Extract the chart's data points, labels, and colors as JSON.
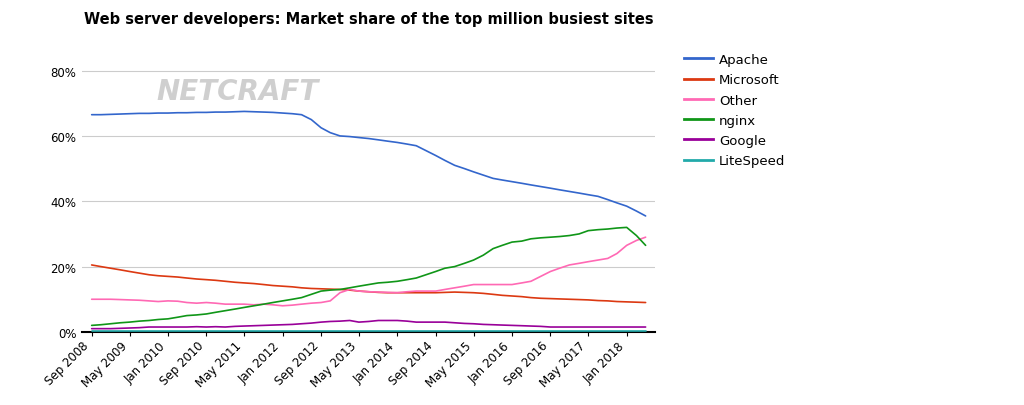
{
  "title": "Web server developers: Market share of the top million busiest sites",
  "series": {
    "Apache": {
      "color": "#3366cc",
      "data_x": [
        2008.67,
        2008.83,
        2009.0,
        2009.17,
        2009.33,
        2009.5,
        2009.67,
        2009.83,
        2010.0,
        2010.17,
        2010.33,
        2010.5,
        2010.67,
        2010.83,
        2011.0,
        2011.17,
        2011.33,
        2011.5,
        2011.67,
        2011.83,
        2012.0,
        2012.17,
        2012.33,
        2012.5,
        2012.67,
        2012.83,
        2013.0,
        2013.17,
        2013.33,
        2013.5,
        2013.67,
        2013.83,
        2014.0,
        2014.17,
        2014.33,
        2014.5,
        2014.67,
        2014.83,
        2015.0,
        2015.17,
        2015.33,
        2015.5,
        2015.67,
        2015.83,
        2016.0,
        2016.17,
        2016.33,
        2016.5,
        2016.67,
        2016.83,
        2017.0,
        2017.17,
        2017.33,
        2017.5,
        2017.67,
        2017.83,
        2018.0,
        2018.17,
        2018.33
      ],
      "data_y": [
        66.5,
        66.5,
        66.6,
        66.7,
        66.8,
        66.9,
        66.9,
        67.0,
        67.0,
        67.1,
        67.1,
        67.2,
        67.2,
        67.3,
        67.3,
        67.4,
        67.5,
        67.4,
        67.3,
        67.2,
        67.0,
        66.8,
        66.5,
        65.0,
        62.5,
        61.0,
        60.0,
        59.8,
        59.5,
        59.2,
        58.8,
        58.4,
        58.0,
        57.5,
        57.0,
        55.5,
        54.0,
        52.5,
        51.0,
        50.0,
        49.0,
        48.0,
        47.0,
        46.5,
        46.0,
        45.5,
        45.0,
        44.5,
        44.0,
        43.5,
        43.0,
        42.5,
        42.0,
        41.5,
        40.5,
        39.5,
        38.5,
        37.0,
        35.5
      ]
    },
    "Microsoft": {
      "color": "#dc3912",
      "data_x": [
        2008.67,
        2008.83,
        2009.0,
        2009.17,
        2009.33,
        2009.5,
        2009.67,
        2009.83,
        2010.0,
        2010.17,
        2010.33,
        2010.5,
        2010.67,
        2010.83,
        2011.0,
        2011.17,
        2011.33,
        2011.5,
        2011.67,
        2011.83,
        2012.0,
        2012.17,
        2012.33,
        2012.5,
        2012.67,
        2012.83,
        2013.0,
        2013.17,
        2013.33,
        2013.5,
        2013.67,
        2013.83,
        2014.0,
        2014.17,
        2014.33,
        2014.5,
        2014.67,
        2014.83,
        2015.0,
        2015.17,
        2015.33,
        2015.5,
        2015.67,
        2015.83,
        2016.0,
        2016.17,
        2016.33,
        2016.5,
        2016.67,
        2016.83,
        2017.0,
        2017.17,
        2017.33,
        2017.5,
        2017.67,
        2017.83,
        2018.0,
        2018.17,
        2018.33
      ],
      "data_y": [
        20.5,
        20.0,
        19.5,
        19.0,
        18.5,
        18.0,
        17.5,
        17.2,
        17.0,
        16.8,
        16.5,
        16.2,
        16.0,
        15.8,
        15.5,
        15.2,
        15.0,
        14.8,
        14.5,
        14.2,
        14.0,
        13.8,
        13.5,
        13.3,
        13.2,
        13.1,
        13.0,
        12.8,
        12.5,
        12.3,
        12.1,
        12.0,
        12.0,
        12.0,
        12.0,
        12.0,
        12.0,
        12.1,
        12.2,
        12.1,
        12.0,
        11.8,
        11.5,
        11.2,
        11.0,
        10.8,
        10.5,
        10.3,
        10.2,
        10.1,
        10.0,
        9.9,
        9.8,
        9.6,
        9.5,
        9.3,
        9.2,
        9.1,
        9.0
      ]
    },
    "Other": {
      "color": "#ff69b4",
      "data_x": [
        2008.67,
        2008.83,
        2009.0,
        2009.17,
        2009.33,
        2009.5,
        2009.67,
        2009.83,
        2010.0,
        2010.17,
        2010.33,
        2010.5,
        2010.67,
        2010.83,
        2011.0,
        2011.17,
        2011.33,
        2011.5,
        2011.67,
        2011.83,
        2012.0,
        2012.17,
        2012.33,
        2012.5,
        2012.67,
        2012.83,
        2013.0,
        2013.17,
        2013.33,
        2013.5,
        2013.67,
        2013.83,
        2014.0,
        2014.17,
        2014.33,
        2014.5,
        2014.67,
        2014.83,
        2015.0,
        2015.17,
        2015.33,
        2015.5,
        2015.67,
        2015.83,
        2016.0,
        2016.17,
        2016.33,
        2016.5,
        2016.67,
        2016.83,
        2017.0,
        2017.17,
        2017.33,
        2017.5,
        2017.67,
        2017.83,
        2018.0,
        2018.17,
        2018.33
      ],
      "data_y": [
        10.0,
        10.0,
        10.0,
        9.9,
        9.8,
        9.7,
        9.5,
        9.3,
        9.5,
        9.4,
        9.0,
        8.8,
        9.0,
        8.8,
        8.5,
        8.5,
        8.5,
        8.3,
        8.5,
        8.3,
        8.0,
        8.2,
        8.5,
        8.8,
        9.0,
        9.5,
        12.0,
        13.0,
        12.5,
        12.3,
        12.2,
        12.1,
        12.0,
        12.3,
        12.5,
        12.5,
        12.5,
        13.0,
        13.5,
        14.0,
        14.5,
        14.5,
        14.5,
        14.5,
        14.5,
        15.0,
        15.5,
        17.0,
        18.5,
        19.5,
        20.5,
        21.0,
        21.5,
        22.0,
        22.5,
        24.0,
        26.5,
        28.0,
        29.0
      ]
    },
    "nginx": {
      "color": "#109618",
      "data_x": [
        2008.67,
        2008.83,
        2009.0,
        2009.17,
        2009.33,
        2009.5,
        2009.67,
        2009.83,
        2010.0,
        2010.17,
        2010.33,
        2010.5,
        2010.67,
        2010.83,
        2011.0,
        2011.17,
        2011.33,
        2011.5,
        2011.67,
        2011.83,
        2012.0,
        2012.17,
        2012.33,
        2012.5,
        2012.67,
        2012.83,
        2013.0,
        2013.17,
        2013.33,
        2013.5,
        2013.67,
        2013.83,
        2014.0,
        2014.17,
        2014.33,
        2014.5,
        2014.67,
        2014.83,
        2015.0,
        2015.17,
        2015.33,
        2015.5,
        2015.67,
        2015.83,
        2016.0,
        2016.17,
        2016.33,
        2016.5,
        2016.67,
        2016.83,
        2017.0,
        2017.17,
        2017.33,
        2017.5,
        2017.67,
        2017.83,
        2018.0,
        2018.17,
        2018.33
      ],
      "data_y": [
        2.0,
        2.2,
        2.5,
        2.8,
        3.0,
        3.3,
        3.5,
        3.8,
        4.0,
        4.5,
        5.0,
        5.2,
        5.5,
        6.0,
        6.5,
        7.0,
        7.5,
        8.0,
        8.5,
        9.0,
        9.5,
        10.0,
        10.5,
        11.5,
        12.5,
        12.8,
        13.0,
        13.5,
        14.0,
        14.5,
        15.0,
        15.2,
        15.5,
        16.0,
        16.5,
        17.5,
        18.5,
        19.5,
        20.0,
        21.0,
        22.0,
        23.5,
        25.5,
        26.5,
        27.5,
        27.8,
        28.5,
        28.8,
        29.0,
        29.2,
        29.5,
        30.0,
        31.0,
        31.3,
        31.5,
        31.8,
        32.0,
        29.5,
        26.5
      ]
    },
    "Google": {
      "color": "#990099",
      "data_x": [
        2008.67,
        2008.83,
        2009.0,
        2009.17,
        2009.33,
        2009.5,
        2009.67,
        2009.83,
        2010.0,
        2010.17,
        2010.33,
        2010.5,
        2010.67,
        2010.83,
        2011.0,
        2011.17,
        2011.33,
        2011.5,
        2011.67,
        2011.83,
        2012.0,
        2012.17,
        2012.33,
        2012.5,
        2012.67,
        2012.83,
        2013.0,
        2013.17,
        2013.33,
        2013.5,
        2013.67,
        2013.83,
        2014.0,
        2014.17,
        2014.33,
        2014.5,
        2014.67,
        2014.83,
        2015.0,
        2015.17,
        2015.33,
        2015.5,
        2015.67,
        2015.83,
        2016.0,
        2016.17,
        2016.33,
        2016.5,
        2016.67,
        2016.83,
        2017.0,
        2017.17,
        2017.33,
        2017.5,
        2017.67,
        2017.83,
        2018.0,
        2018.17,
        2018.33
      ],
      "data_y": [
        1.0,
        1.0,
        1.0,
        1.1,
        1.2,
        1.3,
        1.5,
        1.5,
        1.5,
        1.5,
        1.5,
        1.6,
        1.5,
        1.6,
        1.5,
        1.7,
        1.8,
        1.9,
        2.0,
        2.1,
        2.2,
        2.3,
        2.5,
        2.7,
        3.0,
        3.2,
        3.3,
        3.5,
        3.0,
        3.2,
        3.5,
        3.5,
        3.5,
        3.3,
        3.0,
        3.0,
        3.0,
        3.0,
        2.8,
        2.6,
        2.5,
        2.3,
        2.2,
        2.1,
        2.0,
        1.9,
        1.8,
        1.7,
        1.5,
        1.5,
        1.5,
        1.5,
        1.5,
        1.5,
        1.5,
        1.5,
        1.5,
        1.5,
        1.5
      ]
    },
    "LiteSpeed": {
      "color": "#22aaaa",
      "data_x": [
        2008.67,
        2008.83,
        2009.0,
        2009.17,
        2009.33,
        2009.5,
        2009.67,
        2009.83,
        2010.0,
        2010.17,
        2010.33,
        2010.5,
        2010.67,
        2010.83,
        2011.0,
        2011.17,
        2011.33,
        2011.5,
        2011.67,
        2011.83,
        2012.0,
        2012.17,
        2012.33,
        2012.5,
        2012.67,
        2012.83,
        2013.0,
        2013.17,
        2013.33,
        2013.5,
        2013.67,
        2013.83,
        2014.0,
        2014.17,
        2014.33,
        2014.5,
        2014.67,
        2014.83,
        2015.0,
        2015.17,
        2015.33,
        2015.5,
        2015.67,
        2015.83,
        2016.0,
        2016.17,
        2016.33,
        2016.5,
        2016.67,
        2016.83,
        2017.0,
        2017.17,
        2017.33,
        2017.5,
        2017.67,
        2017.83,
        2018.0,
        2018.17,
        2018.33
      ],
      "data_y": [
        0.2,
        0.2,
        0.2,
        0.2,
        0.2,
        0.2,
        0.2,
        0.2,
        0.2,
        0.2,
        0.2,
        0.2,
        0.2,
        0.2,
        0.2,
        0.2,
        0.2,
        0.2,
        0.2,
        0.2,
        0.2,
        0.2,
        0.2,
        0.2,
        0.2,
        0.2,
        0.2,
        0.2,
        0.2,
        0.2,
        0.2,
        0.2,
        0.2,
        0.2,
        0.2,
        0.2,
        0.2,
        0.2,
        0.2,
        0.2,
        0.2,
        0.2,
        0.2,
        0.2,
        0.2,
        0.2,
        0.2,
        0.2,
        0.2,
        0.2,
        0.2,
        0.2,
        0.2,
        0.2,
        0.2,
        0.2,
        0.2,
        0.2,
        0.2
      ]
    }
  },
  "yticks": [
    0,
    20,
    40,
    60,
    80
  ],
  "ytick_labels": [
    "0%",
    "20%",
    "40%",
    "60%",
    "80%"
  ],
  "xtick_positions": [
    2008.67,
    2009.33,
    2010.0,
    2010.67,
    2011.33,
    2012.0,
    2012.67,
    2013.33,
    2014.0,
    2014.67,
    2015.33,
    2016.0,
    2016.67,
    2017.33,
    2018.0
  ],
  "xtick_labels": [
    "Sep 2008",
    "May 2009",
    "Jan 2010",
    "Sep 2010",
    "May 2011",
    "Jan 2012",
    "Sep 2012",
    "May 2013",
    "Jan 2014",
    "Sep 2014",
    "May 2015",
    "Jan 2016",
    "Sep 2016",
    "May 2017",
    "Jan 2018"
  ],
  "legend_order": [
    "Apache",
    "Microsoft",
    "Other",
    "nginx",
    "Google",
    "LiteSpeed"
  ],
  "ylim": [
    0,
    87
  ],
  "xlim": [
    2008.5,
    2018.5
  ],
  "background_color": "#ffffff",
  "grid_color": "#cccccc",
  "title_fontsize": 10.5,
  "axis_fontsize": 8.5,
  "legend_fontsize": 9.5,
  "line_width": 1.2
}
